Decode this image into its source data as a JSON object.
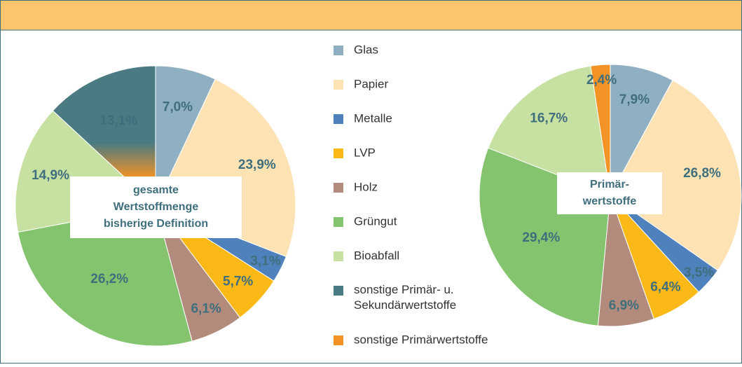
{
  "chart_data": [
    {
      "type": "pie",
      "categories": [
        "Glas",
        "Papier",
        "Metalle",
        "LVP",
        "Holz",
        "Grüngut",
        "Bioabfall",
        "sonstige Primär- u. Sekundärwertstoffe"
      ],
      "colors": [
        "#8fb0c2",
        "#fde3b4",
        "#4f81bd",
        "#fbb917",
        "#b38b7d",
        "#85c46f",
        "#c7e1a3",
        "#4a7a82"
      ],
      "values": [
        7.0,
        23.9,
        3.1,
        5.7,
        6.1,
        26.2,
        14.9,
        13.1
      ],
      "value_labels": [
        "7,0%",
        "23,9%",
        "3,1%",
        "5,7%",
        "6,1%",
        "26,2%",
        "14,9%",
        "13,1%"
      ],
      "center_label": [
        "gesamte",
        "Wertstoffmenge",
        "bisherige Definition"
      ]
    },
    {
      "type": "pie",
      "categories": [
        "Glas",
        "Papier",
        "Metalle",
        "LVP",
        "Holz",
        "Grüngut",
        "Bioabfall",
        "sonstige Primärwertstoffe"
      ],
      "colors": [
        "#8fb0c2",
        "#fde3b4",
        "#4f81bd",
        "#fbb917",
        "#b38b7d",
        "#85c46f",
        "#c7e1a3",
        "#f39325"
      ],
      "values": [
        7.9,
        26.8,
        3.5,
        6.4,
        6.9,
        29.4,
        16.7,
        2.4
      ],
      "value_labels": [
        "7,9%",
        "26,8%",
        "3,5%",
        "6,4%",
        "6,9%",
        "29,4%",
        "16,7%",
        "2,4%"
      ],
      "center_label": [
        "Primär-",
        "wertstoffe"
      ]
    }
  ]
}
